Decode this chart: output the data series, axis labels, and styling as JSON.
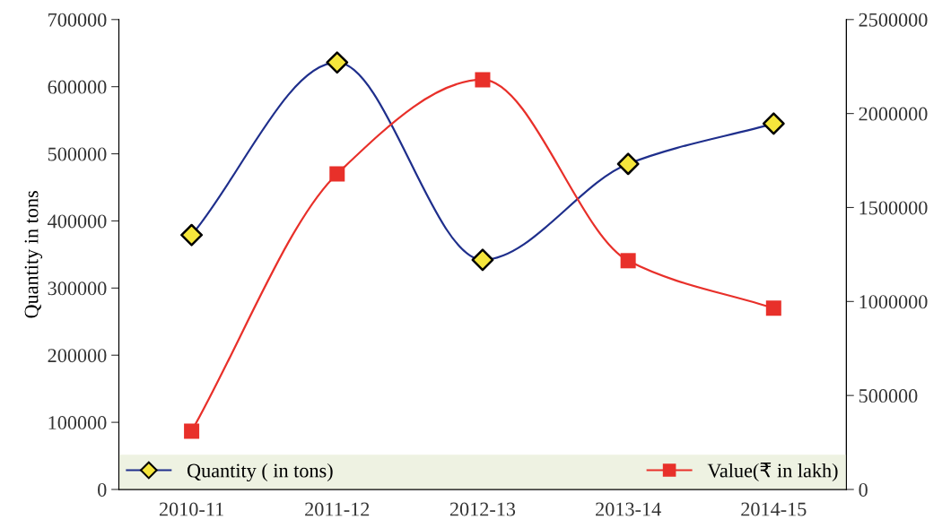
{
  "chart_data": {
    "type": "line",
    "ylabel": "Quantity in tons",
    "categories": [
      "2010-11",
      "2011-12",
      "2012-13",
      "2013-14",
      "2014-15"
    ],
    "series": [
      {
        "name": "Quantity ( in tons)",
        "color": "#1f2f8c",
        "marker": "diamond",
        "values": [
          379000,
          636000,
          342000,
          485000,
          545000
        ]
      },
      {
        "name": "Value(₹ in lakh)",
        "color": "#e8302a",
        "marker": "square",
        "axis": "y2",
        "values": [
          310000,
          1679000,
          2180000,
          1217000,
          964000
        ]
      }
    ],
    "ylim": [
      0,
      700000
    ],
    "yticks": [
      0,
      100000,
      200000,
      300000,
      400000,
      500000,
      600000,
      700000
    ],
    "y2lim": [
      0,
      2500000
    ],
    "y2ticks": [
      0,
      500000,
      1000000,
      1500000,
      2000000,
      2500000
    ],
    "grid": false,
    "legend": "bottom",
    "line_style": "solid"
  }
}
